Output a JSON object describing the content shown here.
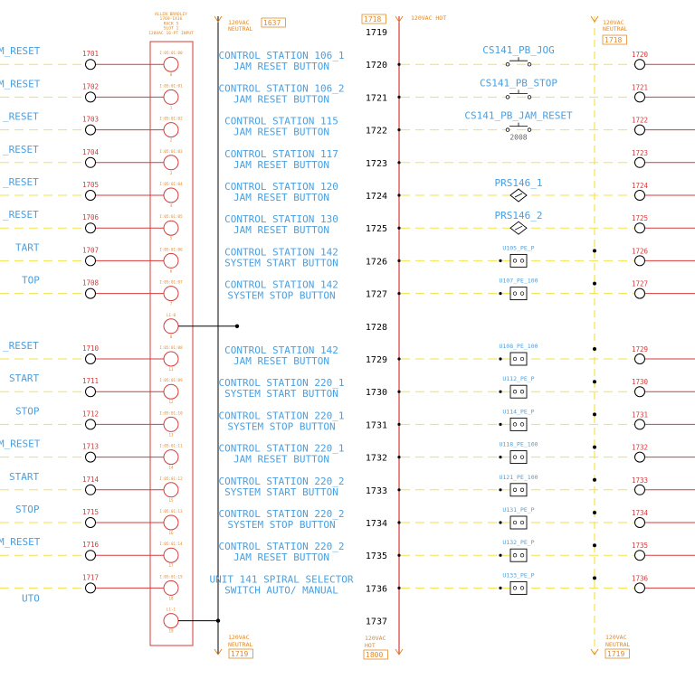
{
  "colors": {
    "background": "#ffffff",
    "desc_blue": "#4a9fe0",
    "wire_red": "#d43b3b",
    "wire_yellow": "#f2e24a",
    "header_orange": "#e08a2a",
    "module_red": "#d43b3b",
    "black": "#000000"
  },
  "module": {
    "header_lines": [
      "ALLEN BRADLEY",
      "1769-IA16",
      "RACK 5",
      "SLOT 1",
      "120VAC 16-PT INPUT"
    ]
  },
  "headers": {
    "neutral_left": {
      "label1": "120VAC",
      "label2": "NEUTRAL",
      "box": "1637"
    },
    "hot_top": {
      "box": "1718",
      "label": "120VAC HOT"
    },
    "neutral_right": {
      "label1": "120VAC",
      "label2": "NEUTRAL",
      "box": "1718"
    },
    "neutral_left_bottom": {
      "label1": "120VAC",
      "label2": "NEUTRAL",
      "box": "1719"
    },
    "hot_bottom": {
      "label1": "120VAC",
      "label2": "HOT",
      "box": "1800"
    },
    "neutral_right_bottom": {
      "label1": "120VAC",
      "label2": "NEUTRAL",
      "box": "1719"
    }
  },
  "left_partial_labels": [
    "M_RESET",
    "M_RESET",
    "_RESET",
    "_RESET",
    "_RESET",
    "_RESET",
    "TART",
    "TOP",
    "_RESET",
    "START",
    "STOP",
    "M_RESET",
    "START",
    "STOP",
    "M_RESET",
    "UTO"
  ],
  "rungs": [
    {
      "num": "1719"
    },
    {
      "num": "1720",
      "left_wire": "1701",
      "addr": "I:05:01:00",
      "pin": "0",
      "desc1": "CONTROL STATION 106_1",
      "desc2": "JAM RESET BUTTON",
      "device": "CS141_PB_JOG",
      "device_type": "pb",
      "right_wire": "1720"
    },
    {
      "num": "1721",
      "left_wire": "1702",
      "addr": "I:05:01:01",
      "pin": "1",
      "desc1": "CONTROL STATION 106_2",
      "desc2": "JAM RESET BUTTON",
      "device": "CS141_PB_STOP",
      "device_type": "pb",
      "right_wire": "1721"
    },
    {
      "num": "1722",
      "left_wire": "1703",
      "addr": "I:05:01:02",
      "pin": "2",
      "desc1": "CONTROL STATION 115",
      "desc2": "JAM RESET BUTTON",
      "device": "CS141_PB_JAM_RESET",
      "device_type": "pb",
      "device_sub": "2008",
      "right_wire": "1722"
    },
    {
      "num": "1723",
      "left_wire": "1704",
      "addr": "I:05:01:03",
      "pin": "3",
      "desc1": "CONTROL STATION 117",
      "desc2": "JAM RESET BUTTON",
      "right_wire": "1723"
    },
    {
      "num": "1724",
      "left_wire": "1705",
      "addr": "I:05:01:04",
      "pin": "4",
      "desc1": "CONTROL STATION 120",
      "desc2": "JAM RESET BUTTON",
      "device": "PRS146_1",
      "device_type": "prs",
      "right_wire": "1724"
    },
    {
      "num": "1725",
      "left_wire": "1706",
      "addr": "I:05:01:05",
      "pin": "5",
      "desc1": "CONTROL STATION 130",
      "desc2": "JAM RESET BUTTON",
      "device": "PRS146_2",
      "device_type": "prs",
      "right_wire": "1725"
    },
    {
      "num": "1726",
      "left_wire": "1707",
      "addr": "I:05:01:06",
      "pin": "6",
      "desc1": "CONTROL STATION 142",
      "desc2": "SYSTEM START BUTTON",
      "device": "U105_PE_P",
      "device_type": "pe",
      "right_wire": "1726"
    },
    {
      "num": "1727",
      "left_wire": "1708",
      "addr": "I:05:01:07",
      "pin": "7",
      "desc1": "CONTROL STATION 142",
      "desc2": "SYSTEM STOP BUTTON",
      "device": "U107_PE_100",
      "device_type": "pe",
      "right_wire": "1727"
    },
    {
      "num": "1728",
      "addr": "L1-0",
      "pin": "8"
    },
    {
      "num": "1729",
      "left_wire": "1710",
      "addr": "I:05:01:08",
      "pin": "11",
      "desc1": "CONTROL STATION 142",
      "desc2": "JAM RESET BUTTON",
      "device": "U108_PE_100",
      "device_type": "pe",
      "right_wire": "1729"
    },
    {
      "num": "1730",
      "left_wire": "1711",
      "addr": "I:05:01:09",
      "pin": "12",
      "desc1": "CONTROL STATION 220_1",
      "desc2": "SYSTEM START BUTTON",
      "device": "U112_PE_P",
      "device_type": "pe",
      "right_wire": "1730"
    },
    {
      "num": "1731",
      "left_wire": "1712",
      "addr": "I:05:01:10",
      "pin": "13",
      "desc1": "CONTROL STATION 220_1",
      "desc2": "SYSTEM STOP BUTTON",
      "device": "U114_PE_P",
      "device_type": "pe",
      "right_wire": "1731"
    },
    {
      "num": "1732",
      "left_wire": "1713",
      "addr": "I:05:01:11",
      "pin": "14",
      "desc1": "CONTROL STATION 220_1",
      "desc2": "JAM RESET BUTTON",
      "device": "U118_PE_100",
      "device_type": "pe",
      "right_wire": "1732"
    },
    {
      "num": "1733",
      "left_wire": "1714",
      "addr": "I:05:01:12",
      "pin": "15",
      "desc1": "CONTROL STATION 220_2",
      "desc2": "SYSTEM START BUTTON",
      "device": "U121_PE_100",
      "device_type": "pe",
      "right_wire": "1733"
    },
    {
      "num": "1734",
      "left_wire": "1715",
      "addr": "I:05:01:13",
      "pin": "16",
      "desc1": "CONTROL STATION 220_2",
      "desc2": "SYSTEM STOP BUTTON",
      "device": "U131_PE_P",
      "device_type": "pe",
      "right_wire": "1734"
    },
    {
      "num": "1735",
      "left_wire": "1716",
      "addr": "I:05:01:14",
      "pin": "17",
      "desc1": "CONTROL STATION 220_2",
      "desc2": "JAM RESET BUTTON",
      "device": "U132_PE_P",
      "device_type": "pe",
      "right_wire": "1735"
    },
    {
      "num": "1736",
      "left_wire": "1717",
      "addr": "I:05:01:15",
      "pin": "18",
      "desc1": "UNIT 141 SPIRAL SELECTOR",
      "desc2": "SWITCH AUTO/ MANUAL",
      "device": "U133_PE_P",
      "device_type": "pe",
      "right_wire": "1736"
    },
    {
      "num": "1737",
      "addr": "L1-1",
      "pin": "19"
    }
  ]
}
